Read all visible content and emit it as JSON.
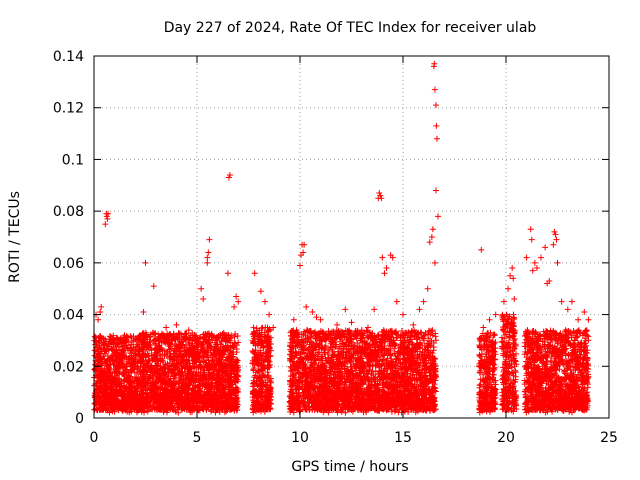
{
  "chart_data": {
    "type": "scatter",
    "title": "Day 227 of 2024, Rate Of TEC Index for receiver ulab",
    "xlabel": "GPS time / hours",
    "ylabel": "ROTI / TECUs",
    "xlim": [
      0,
      25
    ],
    "ylim": [
      0,
      0.14
    ],
    "xticks": [
      0,
      5,
      10,
      15,
      20,
      25
    ],
    "yticks": [
      0,
      0.02,
      0.04,
      0.06,
      0.08,
      0.1,
      0.12,
      0.14
    ],
    "xtick_labels": [
      "0",
      "5",
      "10",
      "15",
      "20",
      "25"
    ],
    "ytick_labels": [
      "0",
      "0.02",
      "0.04",
      "0.06",
      "0.08",
      "0.1",
      "0.12",
      "0.14"
    ],
    "grid": true,
    "marker": "+",
    "marker_color": "#ff0000",
    "series": [
      {
        "name": "ROTI",
        "points": [
          [
            0.1,
            0.04
          ],
          [
            0.2,
            0.038
          ],
          [
            0.3,
            0.041
          ],
          [
            0.35,
            0.043
          ],
          [
            0.6,
            0.079
          ],
          [
            0.62,
            0.078
          ],
          [
            0.65,
            0.077
          ],
          [
            0.68,
            0.079
          ],
          [
            0.55,
            0.075
          ],
          [
            1.0,
            0.03
          ],
          [
            1.5,
            0.031
          ],
          [
            2.4,
            0.041
          ],
          [
            2.5,
            0.06
          ],
          [
            2.9,
            0.051
          ],
          [
            3.5,
            0.035
          ],
          [
            4.0,
            0.036
          ],
          [
            4.6,
            0.034
          ],
          [
            5.2,
            0.05
          ],
          [
            5.3,
            0.046
          ],
          [
            5.5,
            0.062
          ],
          [
            5.55,
            0.064
          ],
          [
            5.6,
            0.069
          ],
          [
            5.5,
            0.06
          ],
          [
            6.5,
            0.056
          ],
          [
            6.6,
            0.094
          ],
          [
            6.55,
            0.093
          ],
          [
            6.9,
            0.047
          ],
          [
            7.0,
            0.045
          ],
          [
            6.8,
            0.043
          ],
          [
            7.8,
            0.056
          ],
          [
            8.1,
            0.049
          ],
          [
            8.3,
            0.045
          ],
          [
            8.5,
            0.04
          ],
          [
            8.7,
            0.035
          ],
          [
            9.7,
            0.038
          ],
          [
            10.0,
            0.059
          ],
          [
            10.05,
            0.063
          ],
          [
            10.1,
            0.067
          ],
          [
            10.15,
            0.064
          ],
          [
            10.2,
            0.067
          ],
          [
            10.3,
            0.043
          ],
          [
            10.6,
            0.041
          ],
          [
            10.8,
            0.039
          ],
          [
            11.0,
            0.038
          ],
          [
            11.8,
            0.036
          ],
          [
            12.2,
            0.042
          ],
          [
            12.5,
            0.037
          ],
          [
            13.0,
            0.034
          ],
          [
            13.3,
            0.035
          ],
          [
            13.6,
            0.042
          ],
          [
            13.8,
            0.085
          ],
          [
            13.9,
            0.086
          ],
          [
            13.95,
            0.085
          ],
          [
            13.85,
            0.087
          ],
          [
            14.0,
            0.062
          ],
          [
            14.1,
            0.056
          ],
          [
            14.2,
            0.058
          ],
          [
            14.4,
            0.063
          ],
          [
            14.5,
            0.062
          ],
          [
            14.7,
            0.045
          ],
          [
            15.0,
            0.04
          ],
          [
            15.5,
            0.036
          ],
          [
            15.8,
            0.042
          ],
          [
            16.0,
            0.045
          ],
          [
            16.2,
            0.05
          ],
          [
            16.3,
            0.068
          ],
          [
            16.4,
            0.07
          ],
          [
            16.45,
            0.073
          ],
          [
            16.5,
            0.136
          ],
          [
            16.52,
            0.137
          ],
          [
            16.55,
            0.127
          ],
          [
            16.6,
            0.121
          ],
          [
            16.62,
            0.113
          ],
          [
            16.65,
            0.108
          ],
          [
            16.6,
            0.088
          ],
          [
            16.7,
            0.078
          ],
          [
            16.55,
            0.06
          ],
          [
            18.8,
            0.065
          ],
          [
            18.9,
            0.035
          ],
          [
            19.2,
            0.038
          ],
          [
            19.5,
            0.04
          ],
          [
            19.9,
            0.045
          ],
          [
            20.1,
            0.05
          ],
          [
            20.2,
            0.055
          ],
          [
            20.3,
            0.058
          ],
          [
            20.35,
            0.054
          ],
          [
            20.4,
            0.046
          ],
          [
            21.0,
            0.062
          ],
          [
            21.2,
            0.073
          ],
          [
            21.25,
            0.069
          ],
          [
            21.3,
            0.057
          ],
          [
            21.4,
            0.06
          ],
          [
            21.5,
            0.058
          ],
          [
            21.7,
            0.062
          ],
          [
            21.9,
            0.066
          ],
          [
            22.0,
            0.052
          ],
          [
            22.1,
            0.053
          ],
          [
            22.3,
            0.067
          ],
          [
            22.35,
            0.072
          ],
          [
            22.4,
            0.071
          ],
          [
            22.45,
            0.069
          ],
          [
            22.5,
            0.06
          ],
          [
            22.7,
            0.045
          ],
          [
            23.0,
            0.042
          ],
          [
            23.2,
            0.045
          ],
          [
            23.5,
            0.038
          ],
          [
            23.8,
            0.041
          ],
          [
            24.0,
            0.038
          ]
        ],
        "clusters": [
          {
            "x_range": [
              0.0,
              2.3
            ],
            "y_max": 0.032
          },
          {
            "x_range": [
              2.3,
              7.0
            ],
            "y_max": 0.033
          },
          {
            "x_range": [
              7.7,
              8.6
            ],
            "y_max": 0.035
          },
          {
            "x_range": [
              9.5,
              16.6
            ],
            "y_max": 0.034
          },
          {
            "x_range": [
              18.7,
              19.5
            ],
            "y_max": 0.033
          },
          {
            "x_range": [
              19.8,
              20.5
            ],
            "y_max": 0.04
          },
          {
            "x_range": [
              20.9,
              24.0
            ],
            "y_max": 0.034
          }
        ]
      }
    ]
  }
}
